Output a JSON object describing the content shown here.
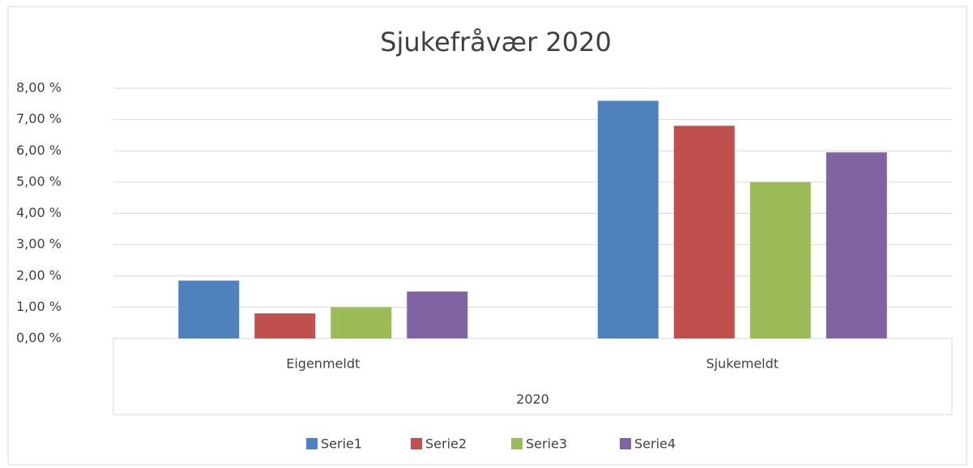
{
  "chart_data": {
    "type": "bar",
    "title": "Sjukefråvær 2020",
    "categories": [
      "Eigenmeldt",
      "Sjukemeldt"
    ],
    "group_label": "2020",
    "series": [
      {
        "name": "Serie1",
        "color": "#4f81bd",
        "values": [
          1.85,
          7.6
        ]
      },
      {
        "name": "Serie2",
        "color": "#c0504d",
        "values": [
          0.8,
          6.8
        ]
      },
      {
        "name": "Serie3",
        "color": "#9bbb59",
        "values": [
          1.0,
          5.0
        ]
      },
      {
        "name": "Serie4",
        "color": "#8064a2",
        "values": [
          1.5,
          5.95
        ]
      }
    ],
    "ylim": [
      0,
      8
    ],
    "yticks": [
      {
        "value": 0,
        "label": "0,00 %"
      },
      {
        "value": 1,
        "label": "1,00 %"
      },
      {
        "value": 2,
        "label": "2,00 %"
      },
      {
        "value": 3,
        "label": "3,00 %"
      },
      {
        "value": 4,
        "label": "4,00 %"
      },
      {
        "value": 5,
        "label": "5,00 %"
      },
      {
        "value": 6,
        "label": "6,00 %"
      },
      {
        "value": 7,
        "label": "7,00 %"
      },
      {
        "value": 8,
        "label": "8,00 %"
      }
    ],
    "grid": true,
    "legend": "bottom"
  }
}
